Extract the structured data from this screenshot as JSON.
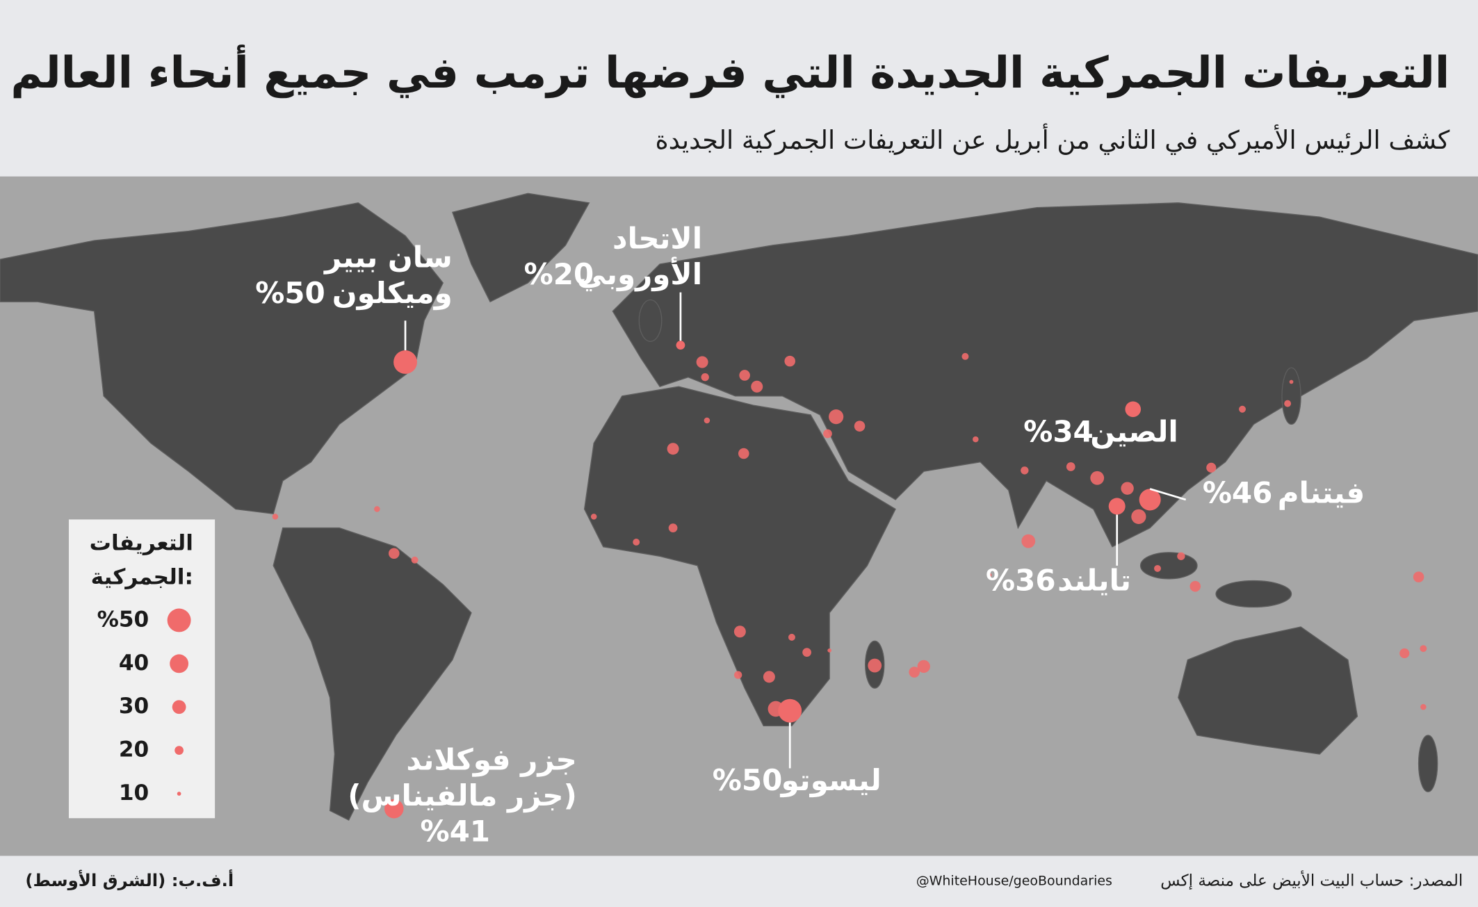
{
  "header": {
    "title": "التعريفات الجمركية الجديدة التي فرضها ترمب في جميع أنحاء العالم",
    "subtitle": "كشف الرئيس الأميركي في الثاني من أبريل عن التعريفات الجمركية الجديدة"
  },
  "legend": {
    "title": [
      "التعريفات",
      "الجمركية:"
    ],
    "items": [
      {
        "value": 50,
        "label": "%50"
      },
      40,
      30,
      20,
      10
    ]
  },
  "callouts": [
    {
      "name": [
        "سان بيير",
        "وميكلون"
      ],
      "value": 50,
      "value_label": "%50"
    },
    {
      "name": [
        "الاتحاد",
        "الأوروبي"
      ],
      "value": 20,
      "value_label": "%20"
    },
    {
      "name": [
        "الصين"
      ],
      "value": 34,
      "value_label": "%34"
    },
    {
      "name": [
        "فيتنام"
      ],
      "value": 46,
      "value_label": "%46"
    },
    {
      "name": [
        "تايلند"
      ],
      "value": 36,
      "value_label": "%36"
    },
    {
      "name": [
        "ليسوتو"
      ],
      "value": 50,
      "value_label": "%50"
    },
    {
      "name": [
        "جزر فوكلاند",
        "(جزر مالفيناس)"
      ],
      "value": 41,
      "value_label": "%41"
    }
  ],
  "other_values": [
    26,
    24,
    24,
    26,
    32,
    24,
    20,
    16,
    14,
    18,
    20,
    30,
    28,
    32,
    30,
    22,
    16,
    16,
    18,
    24,
    16,
    24,
    22,
    16,
    14,
    26,
    24,
    14,
    16,
    20,
    26,
    18,
    26,
    20,
    34,
    30,
    28,
    24,
    24,
    16,
    18,
    14,
    14,
    14,
    16,
    10,
    10,
    10
  ],
  "footer": {
    "source": "المصدر: حساب البيت الأبيض على منصة إكس",
    "source_handle": "@WhiteHouse/geoBoundaries",
    "credit": "أ.ف.ب: (الشرق الأوسط)"
  }
}
